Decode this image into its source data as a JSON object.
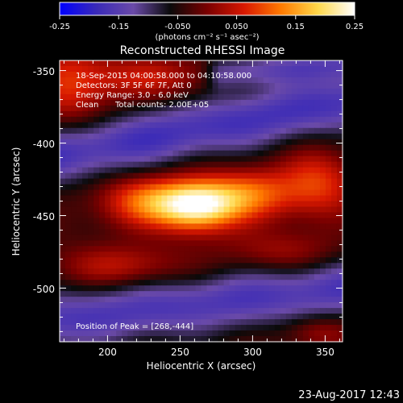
{
  "colorbar": {
    "ticks": [
      "-0.25",
      "-0.15",
      "-0.050",
      "0.050",
      "0.15",
      "0.25"
    ],
    "tick_values": [
      -0.25,
      -0.15,
      -0.05,
      0.05,
      0.15,
      0.25
    ],
    "range": [
      -0.25,
      0.25
    ],
    "unit_label": "(photons cm⁻² s⁻¹ asec⁻²)"
  },
  "chart_data": {
    "type": "heatmap",
    "title": "Reconstructed RHESSI Image",
    "xlabel": "Heliocentric X (arcsec)",
    "ylabel": "Heliocentric Y (arcsec)",
    "xlim": [
      167,
      362
    ],
    "ylim": [
      -537,
      -343
    ],
    "xticks": [
      "200",
      "250",
      "300",
      "350"
    ],
    "xtick_values": [
      200,
      250,
      300,
      350
    ],
    "yticks": [
      "-350",
      "-400",
      "-450",
      "-500"
    ],
    "ytick_values": [
      -350,
      -400,
      -450,
      -500
    ],
    "peak": {
      "x": 268,
      "y": -444
    },
    "colormap": [
      "#0000ff",
      "#3a2ab8",
      "#6a4aa8",
      "#0a0a0a",
      "#7a0000",
      "#d81800",
      "#ff7a00",
      "#ffd84a",
      "#ffffff"
    ],
    "structures": [
      {
        "kind": "source",
        "x": 262,
        "y": -443,
        "sx": 20,
        "sy": 12,
        "value": 0.27
      },
      {
        "kind": "source",
        "x": 225,
        "y": -440,
        "sx": 22,
        "sy": 12,
        "value": 0.13
      },
      {
        "kind": "source",
        "x": 300,
        "y": -435,
        "sx": 22,
        "sy": 12,
        "value": 0.13
      },
      {
        "kind": "source",
        "x": 345,
        "y": -428,
        "sx": 18,
        "sy": 16,
        "value": 0.11
      },
      {
        "kind": "source",
        "x": 210,
        "y": -485,
        "sx": 30,
        "sy": 10,
        "value": 0.08
      },
      {
        "kind": "source",
        "x": 320,
        "y": -475,
        "sx": 28,
        "sy": 10,
        "value": 0.06
      },
      {
        "kind": "source",
        "x": 345,
        "y": -530,
        "sx": 16,
        "sy": 8,
        "value": 0.06
      },
      {
        "kind": "source",
        "x": 175,
        "y": -360,
        "sx": 20,
        "sy": 20,
        "value": 0.1
      },
      {
        "kind": "source",
        "x": 230,
        "y": -355,
        "sx": 30,
        "sy": 10,
        "value": 0.08
      },
      {
        "kind": "band",
        "x0": 167,
        "y0": -408,
        "x1": 362,
        "y1": -372,
        "width": 14,
        "value": -0.14
      },
      {
        "kind": "band",
        "x0": 167,
        "y0": -522,
        "x1": 362,
        "y1": -500,
        "width": 14,
        "value": -0.13
      },
      {
        "kind": "band",
        "x0": 280,
        "y0": -352,
        "x1": 362,
        "y1": -345,
        "width": 8,
        "value": -0.1
      }
    ]
  },
  "info": {
    "time_range": "18-Sep-2015 04:00:58.000 to 04:10:58.000",
    "detectors": "Detectors: 3F 5F 6F 7F, Att 0",
    "energy": "Energy Range: 3.0 - 6.0 keV",
    "method": "Clean",
    "counts": "Total counts: 2.00E+05",
    "peak_text": "Position of Peak = [268,-444]"
  },
  "footer": {
    "timestamp": "23-Aug-2017 12:43"
  }
}
